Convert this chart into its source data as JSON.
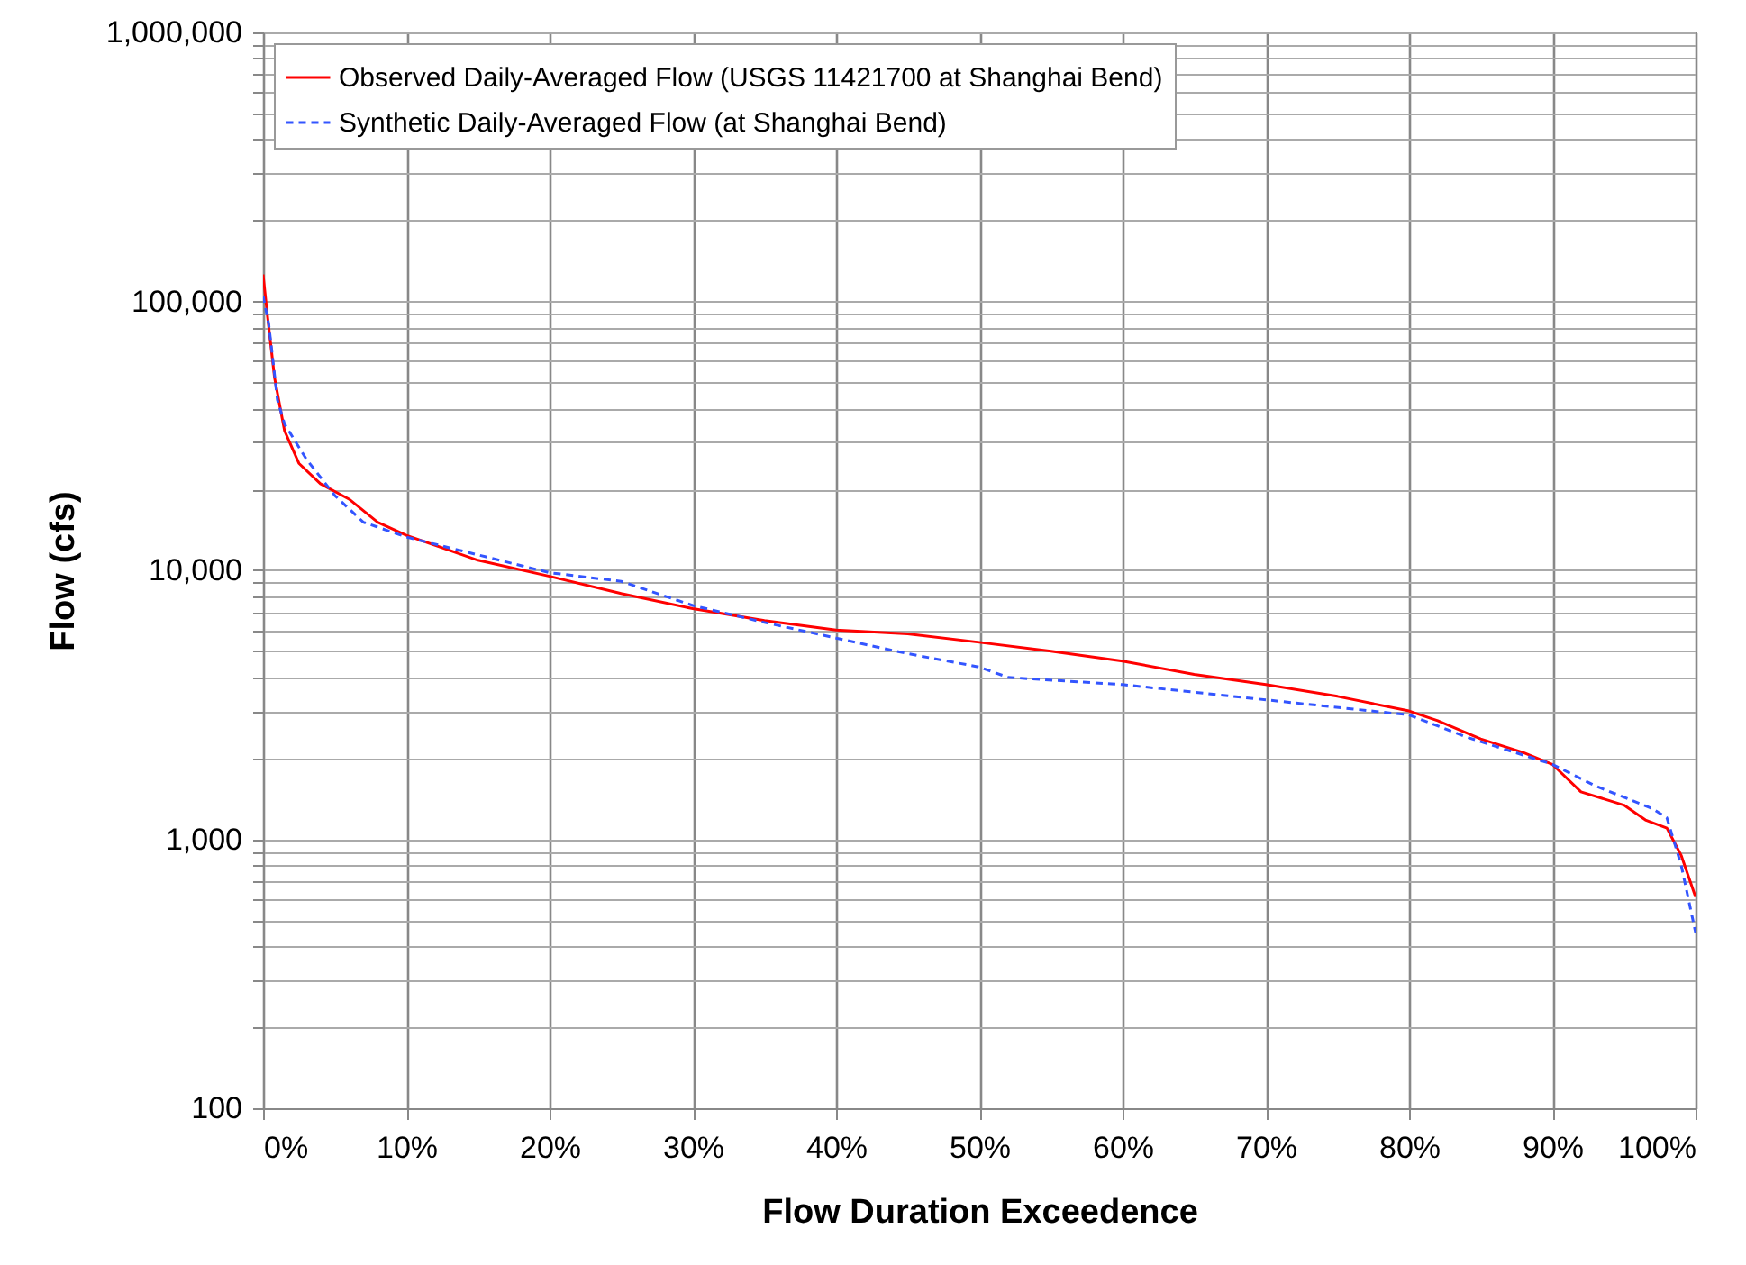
{
  "chart_data": {
    "type": "line",
    "xlabel": "Flow Duration Exceedence",
    "ylabel": "Flow (cfs)",
    "log": "y",
    "grid": true,
    "legend": "top left",
    "marker": "none",
    "xlim": [
      0,
      100
    ],
    "ylim": [
      100,
      1000000
    ],
    "xticks": [
      {
        "value": 0,
        "label": "0%"
      },
      {
        "value": 10,
        "label": "10%"
      },
      {
        "value": 20,
        "label": "20%"
      },
      {
        "value": 30,
        "label": "30%"
      },
      {
        "value": 40,
        "label": "40%"
      },
      {
        "value": 50,
        "label": "50%"
      },
      {
        "value": 60,
        "label": "60%"
      },
      {
        "value": 70,
        "label": "70%"
      },
      {
        "value": 80,
        "label": "80%"
      },
      {
        "value": 90,
        "label": "90%"
      },
      {
        "value": 100,
        "label": "100%"
      }
    ],
    "yticks": [
      {
        "value": 100,
        "label": "100"
      },
      {
        "value": 200,
        "label": null
      },
      {
        "value": 300,
        "label": null
      },
      {
        "value": 400,
        "label": null
      },
      {
        "value": 500,
        "label": null
      },
      {
        "value": 600,
        "label": null
      },
      {
        "value": 700,
        "label": null
      },
      {
        "value": 800,
        "label": null
      },
      {
        "value": 900,
        "label": null
      },
      {
        "value": 1000,
        "label": "1,000"
      },
      {
        "value": 2000,
        "label": null
      },
      {
        "value": 3000,
        "label": null
      },
      {
        "value": 4000,
        "label": null
      },
      {
        "value": 5000,
        "label": null
      },
      {
        "value": 6000,
        "label": null
      },
      {
        "value": 7000,
        "label": null
      },
      {
        "value": 8000,
        "label": null
      },
      {
        "value": 9000,
        "label": null
      },
      {
        "value": 10000,
        "label": "10,000"
      },
      {
        "value": 20000,
        "label": null
      },
      {
        "value": 30000,
        "label": null
      },
      {
        "value": 40000,
        "label": null
      },
      {
        "value": 50000,
        "label": null
      },
      {
        "value": 60000,
        "label": null
      },
      {
        "value": 70000,
        "label": null
      },
      {
        "value": 80000,
        "label": null
      },
      {
        "value": 90000,
        "label": null
      },
      {
        "value": 100000,
        "label": "100,000"
      },
      {
        "value": 200000,
        "label": null
      },
      {
        "value": 300000,
        "label": null
      },
      {
        "value": 400000,
        "label": null
      },
      {
        "value": 500000,
        "label": null
      },
      {
        "value": 600000,
        "label": null
      },
      {
        "value": 700000,
        "label": null
      },
      {
        "value": 800000,
        "label": null
      },
      {
        "value": 900000,
        "label": null
      },
      {
        "value": 1000000,
        "label": "1,000,000"
      }
    ],
    "series": [
      {
        "name": "Observed Daily-Averaged Flow (USGS 11421700 at Shanghai Bend)",
        "color": "#ff0000",
        "line_style": "solid",
        "x": [
          0,
          0.3,
          0.8,
          1.5,
          2.5,
          4,
          6,
          8,
          10,
          15,
          20,
          25,
          30,
          35,
          40,
          45,
          50,
          55,
          60,
          65,
          70,
          75,
          80,
          82,
          85,
          88,
          90,
          92,
          95,
          96.5,
          98,
          99,
          100
        ],
        "values": [
          126000,
          89000,
          52000,
          33000,
          25000,
          21000,
          18400,
          15100,
          13500,
          10900,
          9500,
          8200,
          7200,
          6500,
          6000,
          5800,
          5400,
          5000,
          4600,
          4100,
          3760,
          3400,
          3000,
          2760,
          2360,
          2100,
          1900,
          1500,
          1340,
          1180,
          1100,
          870,
          610
        ]
      },
      {
        "name": "Synthetic Daily-Averaged Flow (at Shanghai Bend)",
        "color": "#3355ff",
        "line_style": "dashed",
        "x": [
          0,
          0.4,
          1,
          1.5,
          3,
          5,
          7,
          10,
          20,
          25,
          30,
          35,
          40,
          45,
          50,
          52,
          60,
          70,
          80,
          84,
          90,
          93,
          97,
          98,
          99,
          100
        ],
        "values": [
          105000,
          82000,
          43000,
          35000,
          26000,
          19000,
          15100,
          13300,
          9800,
          9100,
          7400,
          6400,
          5600,
          4900,
          4370,
          4000,
          3760,
          3300,
          2900,
          2400,
          1900,
          1580,
          1300,
          1200,
          800,
          450
        ]
      }
    ]
  }
}
